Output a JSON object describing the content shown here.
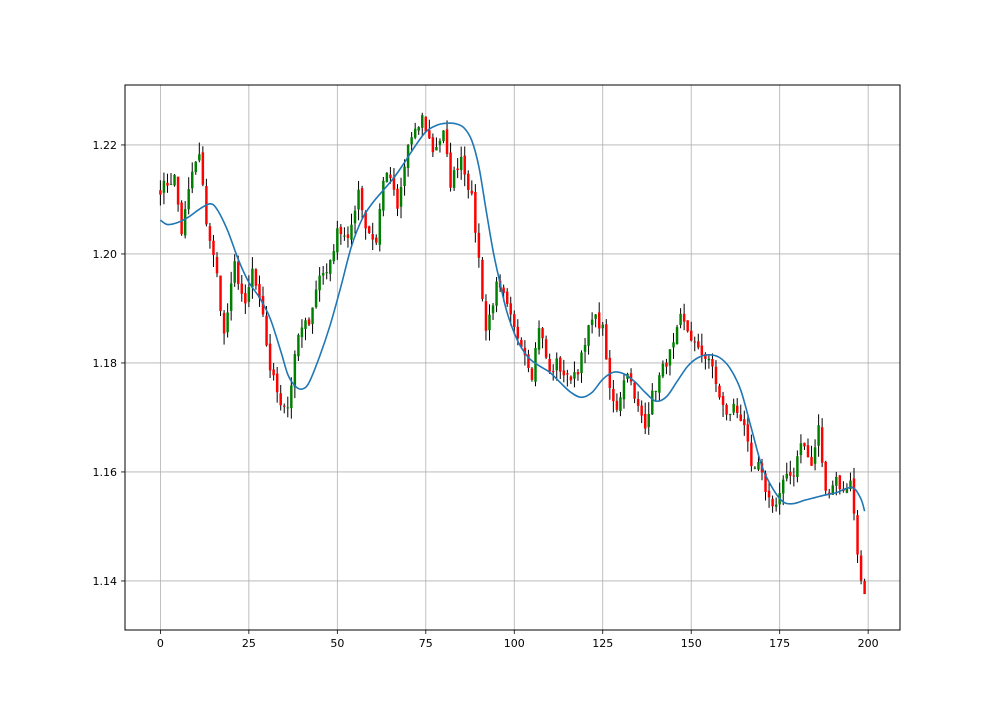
{
  "chart_data": {
    "type": "candlestick",
    "title": "",
    "xlabel": "",
    "ylabel": "",
    "xlim": [
      -10,
      209
    ],
    "ylim": [
      1.131,
      1.231
    ],
    "grid": true,
    "x_ticks": [
      0,
      25,
      50,
      75,
      100,
      125,
      150,
      175,
      200
    ],
    "x_tick_labels": [
      "0",
      "25",
      "50",
      "75",
      "100",
      "125",
      "150",
      "175",
      "200"
    ],
    "y_ticks": [
      1.14,
      1.16,
      1.18,
      1.2,
      1.22
    ],
    "y_tick_labels": [
      "1.14",
      "1.16",
      "1.18",
      "1.20",
      "1.22"
    ],
    "colors": {
      "up": "#008000",
      "down": "#ff0000",
      "wick": "#000000",
      "line": "#1f77b4"
    },
    "close_path": [
      [
        0,
        1.212
      ],
      [
        4,
        1.214
      ],
      [
        6,
        1.204
      ],
      [
        9,
        1.215
      ],
      [
        11,
        1.218
      ],
      [
        13,
        1.206
      ],
      [
        16,
        1.196
      ],
      [
        18,
        1.185
      ],
      [
        21,
        1.198
      ],
      [
        24,
        1.19
      ],
      [
        26,
        1.197
      ],
      [
        29,
        1.188
      ],
      [
        31,
        1.179
      ],
      [
        34,
        1.173
      ],
      [
        36,
        1.172
      ],
      [
        39,
        1.185
      ],
      [
        42,
        1.188
      ],
      [
        45,
        1.196
      ],
      [
        48,
        1.198
      ],
      [
        50,
        1.205
      ],
      [
        53,
        1.202
      ],
      [
        56,
        1.212
      ],
      [
        58,
        1.205
      ],
      [
        61,
        1.202
      ],
      [
        63,
        1.214
      ],
      [
        65,
        1.214
      ],
      [
        67,
        1.208
      ],
      [
        70,
        1.22
      ],
      [
        72,
        1.222
      ],
      [
        74,
        1.225
      ],
      [
        77,
        1.219
      ],
      [
        80,
        1.222
      ],
      [
        82,
        1.213
      ],
      [
        85,
        1.218
      ],
      [
        88,
        1.21
      ],
      [
        90,
        1.199
      ],
      [
        92,
        1.186
      ],
      [
        95,
        1.194
      ],
      [
        97,
        1.192
      ],
      [
        100,
        1.186
      ],
      [
        102,
        1.184
      ],
      [
        105,
        1.178
      ],
      [
        107,
        1.187
      ],
      [
        110,
        1.178
      ],
      [
        112,
        1.18
      ],
      [
        115,
        1.177
      ],
      [
        118,
        1.179
      ],
      [
        120,
        1.183
      ],
      [
        122,
        1.189
      ],
      [
        125,
        1.186
      ],
      [
        127,
        1.175
      ],
      [
        129,
        1.172
      ],
      [
        132,
        1.179
      ],
      [
        134,
        1.173
      ],
      [
        137,
        1.169
      ],
      [
        139,
        1.174
      ],
      [
        142,
        1.179
      ],
      [
        145,
        1.183
      ],
      [
        147,
        1.188
      ],
      [
        149,
        1.186
      ],
      [
        152,
        1.182
      ],
      [
        155,
        1.181
      ],
      [
        157,
        1.176
      ],
      [
        160,
        1.17
      ],
      [
        162,
        1.172
      ],
      [
        165,
        1.169
      ],
      [
        167,
        1.16
      ],
      [
        169,
        1.161
      ],
      [
        172,
        1.155
      ],
      [
        174,
        1.154
      ],
      [
        176,
        1.158
      ],
      [
        179,
        1.16
      ],
      [
        181,
        1.166
      ],
      [
        184,
        1.161
      ],
      [
        186,
        1.168
      ],
      [
        188,
        1.156
      ],
      [
        191,
        1.159
      ],
      [
        193,
        1.156
      ],
      [
        195,
        1.159
      ],
      [
        197,
        1.145
      ],
      [
        199,
        1.137
      ]
    ],
    "series": [
      {
        "type": "line",
        "points": [
          [
            0,
            1.2062
          ],
          [
            2,
            1.2054
          ],
          [
            5,
            1.2058
          ],
          [
            8,
            1.2068
          ],
          [
            11,
            1.2082
          ],
          [
            14,
            1.2092
          ],
          [
            16,
            1.2082
          ],
          [
            19,
            1.2043
          ],
          [
            22,
            1.199
          ],
          [
            25,
            1.1948
          ],
          [
            28,
            1.192
          ],
          [
            31,
            1.1882
          ],
          [
            34,
            1.1822
          ],
          [
            36,
            1.1779
          ],
          [
            38,
            1.1758
          ],
          [
            40,
            1.1752
          ],
          [
            42,
            1.1764
          ],
          [
            45,
            1.1812
          ],
          [
            48,
            1.187
          ],
          [
            51,
            1.194
          ],
          [
            54,
            1.2014
          ],
          [
            57,
            1.2064
          ],
          [
            60,
            1.2094
          ],
          [
            63,
            1.2117
          ],
          [
            66,
            1.214
          ],
          [
            69,
            1.2168
          ],
          [
            72,
            1.2198
          ],
          [
            75,
            1.2224
          ],
          [
            78,
            1.2236
          ],
          [
            81,
            1.224
          ],
          [
            84,
            1.2238
          ],
          [
            86,
            1.223
          ],
          [
            88,
            1.2208
          ],
          [
            90,
            1.216
          ],
          [
            92,
            1.2082
          ],
          [
            94,
            1.2006
          ],
          [
            96,
            1.1946
          ],
          [
            98,
            1.1892
          ],
          [
            101,
            1.184
          ],
          [
            104,
            1.181
          ],
          [
            107,
            1.1795
          ],
          [
            110,
            1.1783
          ],
          [
            113,
            1.1764
          ],
          [
            116,
            1.1746
          ],
          [
            119,
            1.1737
          ],
          [
            122,
            1.1746
          ],
          [
            125,
            1.177
          ],
          [
            128,
            1.1783
          ],
          [
            131,
            1.178
          ],
          [
            134,
            1.1766
          ],
          [
            137,
            1.1746
          ],
          [
            140,
            1.173
          ],
          [
            143,
            1.1738
          ],
          [
            146,
            1.1766
          ],
          [
            149,
            1.1794
          ],
          [
            152,
            1.181
          ],
          [
            155,
            1.1815
          ],
          [
            158,
            1.181
          ],
          [
            161,
            1.179
          ],
          [
            164,
            1.175
          ],
          [
            167,
            1.168
          ],
          [
            170,
            1.161
          ],
          [
            173,
            1.157
          ],
          [
            176,
            1.1545
          ],
          [
            179,
            1.1542
          ],
          [
            182,
            1.1548
          ],
          [
            185,
            1.1553
          ],
          [
            188,
            1.1558
          ],
          [
            191,
            1.1562
          ],
          [
            194,
            1.157
          ],
          [
            196,
            1.157
          ],
          [
            198,
            1.155
          ],
          [
            199,
            1.1528
          ]
        ]
      }
    ]
  }
}
